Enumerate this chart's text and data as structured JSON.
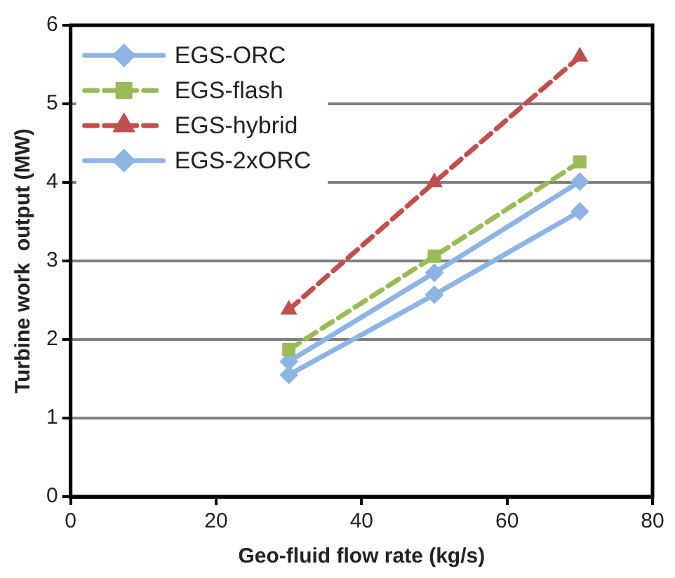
{
  "chart_data": {
    "type": "line",
    "xlabel": "Geo-fluid flow rate (kg/s)",
    "ylabel": "Turbine work  output (MW)",
    "x": [
      30,
      50,
      70
    ],
    "series": [
      {
        "name": "EGS-ORC",
        "color": "#8db4e2",
        "values": [
          1.55,
          2.57,
          3.63
        ],
        "marker": "diamond",
        "line_style": "solid"
      },
      {
        "name": "EGS-flash",
        "color": "#9bbb59",
        "values": [
          1.87,
          3.06,
          4.26
        ],
        "marker": "square",
        "line_style": "dashed"
      },
      {
        "name": "EGS-hybrid",
        "color": "#c0504d",
        "values": [
          2.38,
          4.0,
          5.6
        ],
        "marker": "triangle",
        "line_style": "dashed"
      },
      {
        "name": "EGS-2xORC",
        "color": "#8db4e2",
        "values": [
          1.72,
          2.85,
          4.01
        ],
        "marker": "diamond",
        "line_style": "solid"
      }
    ],
    "xlim": [
      0,
      80
    ],
    "xticks": [
      0,
      20,
      40,
      60,
      80
    ],
    "ylim": [
      0,
      6
    ],
    "yticks": [
      0,
      1,
      2,
      3,
      4,
      5,
      6
    ],
    "grid": "y",
    "legend": "top left"
  }
}
